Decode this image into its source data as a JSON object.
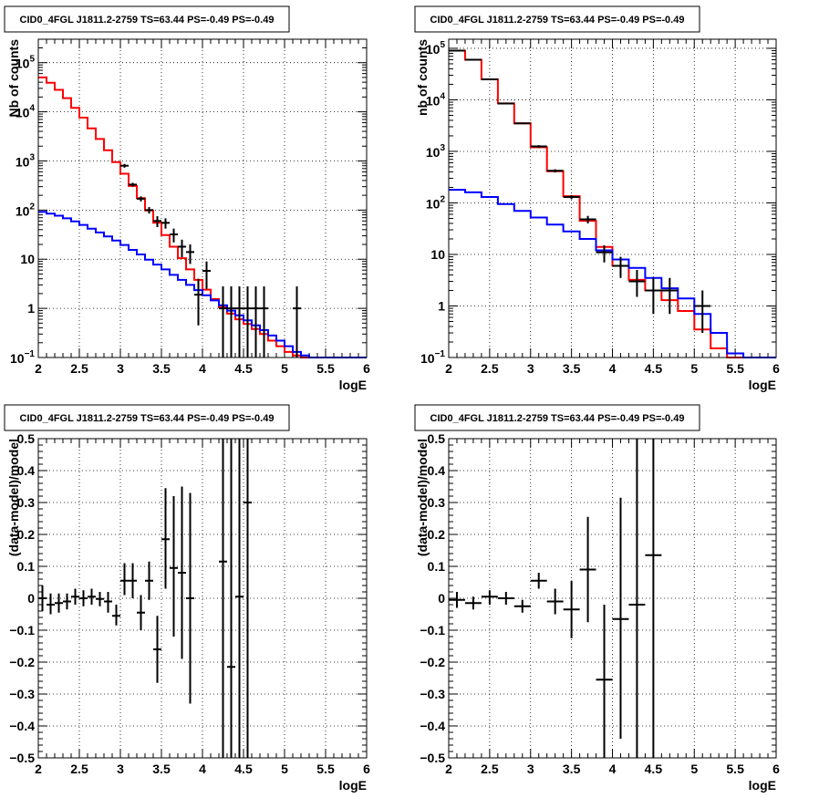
{
  "chart_data": [
    {
      "type": "line",
      "title": "CID0_4FGL J1811.2-2759 TS=63.44 PS=-0.49 PS=-0.49",
      "xlabel": "logE",
      "ylabel": "Nb of counts",
      "xlim": [
        2,
        6
      ],
      "ylim": [
        0.1,
        300000
      ],
      "ytype": "log",
      "grid": true,
      "xticks": [
        "2",
        "2.5",
        "3",
        "3.5",
        "4",
        "4.5",
        "5",
        "5.5",
        "6"
      ],
      "yticks": [
        {
          "v": 0.1,
          "base": "10",
          "exp": "−1"
        },
        {
          "v": 1,
          "text": "1"
        },
        {
          "v": 10,
          "text": "10"
        },
        {
          "v": 100,
          "base": "10",
          "exp": "2"
        },
        {
          "v": 1000,
          "base": "10",
          "exp": "3"
        },
        {
          "v": 10000,
          "base": "10",
          "exp": "4"
        },
        {
          "v": 100000,
          "base": "10",
          "exp": "5"
        }
      ],
      "series": [
        {
          "color": "#ff0000",
          "style": "step",
          "binwidth": 0.1,
          "x": [
            2.05,
            2.15,
            2.25,
            2.35,
            2.45,
            2.55,
            2.65,
            2.75,
            2.85,
            2.95,
            3.05,
            3.15,
            3.25,
            3.35,
            3.45,
            3.55,
            3.65,
            3.75,
            3.85,
            3.95,
            4.05,
            4.15,
            4.25,
            4.35,
            4.45,
            4.55,
            4.65,
            4.75,
            4.85,
            4.95,
            5.05,
            5.15,
            5.25,
            5.35,
            5.45,
            5.55,
            5.65,
            5.75,
            5.85,
            5.95
          ],
          "y": [
            50000,
            39000,
            28000,
            19000,
            12000,
            7600,
            4600,
            2800,
            1650,
            950,
            550,
            310,
            175,
            98,
            55,
            31,
            18,
            10.5,
            6.2,
            3.8,
            2.4,
            1.55,
            1.05,
            0.78,
            0.6,
            0.48,
            0.38,
            0.3,
            0.22,
            0.17,
            0.13,
            0.11,
            0.1,
            0.1,
            0.1,
            0.1,
            0.1,
            0.1,
            0.1,
            0.1
          ]
        },
        {
          "color": "#0000ff",
          "style": "step",
          "binwidth": 0.1,
          "x": [
            2.05,
            2.15,
            2.25,
            2.35,
            2.45,
            2.55,
            2.65,
            2.75,
            2.85,
            2.95,
            3.05,
            3.15,
            3.25,
            3.35,
            3.45,
            3.55,
            3.65,
            3.75,
            3.85,
            3.95,
            4.05,
            4.15,
            4.25,
            4.35,
            4.45,
            4.55,
            4.65,
            4.75,
            4.85,
            4.95,
            5.05,
            5.15,
            5.25,
            5.35,
            5.45,
            5.55,
            5.65,
            5.75,
            5.85,
            5.95
          ],
          "y": [
            92,
            85,
            77,
            68,
            59,
            50,
            42,
            35,
            29,
            24,
            19.5,
            15.5,
            12.5,
            9.8,
            7.8,
            6.2,
            4.8,
            3.8,
            3.0,
            2.35,
            1.85,
            1.45,
            1.15,
            0.9,
            0.72,
            0.57,
            0.45,
            0.36,
            0.28,
            0.22,
            0.17,
            0.13,
            0.11,
            0.1,
            0.1,
            0.1,
            0.1,
            0.1,
            0.1,
            0.1
          ]
        },
        {
          "color": "#000000",
          "style": "errorbar",
          "xerr": 0.05,
          "x": [
            3.05,
            3.15,
            3.25,
            3.35,
            3.45,
            3.55,
            3.65,
            3.75,
            3.85,
            3.95,
            4.05,
            4.25,
            4.35,
            4.45,
            4.55,
            4.65,
            4.75,
            5.15
          ],
          "y": [
            800,
            330,
            170,
            100,
            60,
            55,
            32,
            18,
            14,
            1.9,
            5.8,
            1,
            1,
            1,
            1,
            1,
            1,
            1
          ],
          "ylo": [
            730,
            300,
            150,
            85,
            45,
            42,
            22,
            11,
            8,
            0.45,
            2.5,
            0.1,
            0.1,
            0.1,
            0.1,
            0.1,
            0.1,
            0.1
          ],
          "yhi": [
            870,
            360,
            190,
            115,
            75,
            68,
            42,
            25,
            20,
            4,
            9,
            2.8,
            2.8,
            2.8,
            2.8,
            2.8,
            2.8,
            2.8
          ]
        }
      ]
    },
    {
      "type": "line",
      "title": "CID0_4FGL J1811.2-2759 TS=63.44 PS=-0.49 PS=-0.49",
      "xlabel": "logE",
      "ylabel": "nb of counts",
      "xlim": [
        2,
        6
      ],
      "ylim": [
        0.1,
        150000
      ],
      "ytype": "log",
      "grid": true,
      "xticks": [
        "2",
        "2.5",
        "3",
        "3.5",
        "4",
        "4.5",
        "5",
        "5.5",
        "6"
      ],
      "yticks": [
        {
          "v": 0.1,
          "base": "10",
          "exp": "−1"
        },
        {
          "v": 1,
          "text": "1"
        },
        {
          "v": 10,
          "text": "10"
        },
        {
          "v": 100,
          "base": "10",
          "exp": "2"
        },
        {
          "v": 1000,
          "base": "10",
          "exp": "3"
        },
        {
          "v": 10000,
          "base": "10",
          "exp": "4"
        },
        {
          "v": 100000,
          "base": "10",
          "exp": "5"
        }
      ],
      "series": [
        {
          "color": "#ff0000",
          "style": "step",
          "binwidth": 0.2,
          "x": [
            2.1,
            2.3,
            2.5,
            2.7,
            2.9,
            3.1,
            3.3,
            3.5,
            3.7,
            3.9,
            4.1,
            4.3,
            4.5,
            4.7,
            4.9,
            5.1,
            5.3,
            5.5,
            5.7,
            5.9
          ],
          "y": [
            90000,
            60000,
            25000,
            8500,
            3500,
            1200,
            410,
            135,
            45,
            14,
            6,
            3.2,
            2,
            1.3,
            0.8,
            0.35,
            0.15,
            0.1,
            0.1,
            0.1
          ]
        },
        {
          "color": "#0000ff",
          "style": "step",
          "binwidth": 0.2,
          "x": [
            2.1,
            2.3,
            2.5,
            2.7,
            2.9,
            3.1,
            3.3,
            3.5,
            3.7,
            3.9,
            4.1,
            4.3,
            4.5,
            4.7,
            4.9,
            5.1,
            5.3,
            5.5,
            5.7,
            5.9
          ],
          "y": [
            180,
            160,
            130,
            95,
            70,
            52,
            38,
            28,
            20,
            12,
            8,
            5.5,
            3.5,
            2.2,
            1.4,
            0.7,
            0.3,
            0.12,
            0.1,
            0.1
          ]
        },
        {
          "color": "#000000",
          "style": "errorbar",
          "xerr": 0.1,
          "x": [
            2.1,
            2.3,
            2.5,
            2.7,
            2.9,
            3.1,
            3.3,
            3.5,
            3.7,
            3.9,
            4.1,
            4.3,
            4.5,
            4.7,
            5.1
          ],
          "y": [
            90000,
            60000,
            25000,
            8500,
            3500,
            1250,
            420,
            130,
            48,
            11,
            6,
            3,
            2,
            2,
            1
          ],
          "ylo": [
            89000,
            59000,
            24500,
            8300,
            3400,
            1180,
            390,
            118,
            40,
            7,
            3.5,
            1.5,
            0.7,
            0.7,
            0.3
          ],
          "yhi": [
            91000,
            61000,
            25500,
            8700,
            3600,
            1320,
            450,
            142,
            56,
            15,
            9,
            5,
            3.5,
            3.5,
            2
          ]
        }
      ]
    },
    {
      "type": "scatter",
      "title": "CID0_4FGL J1811.2-2759 TS=63.44 PS=-0.49 PS=-0.49",
      "xlabel": "logE",
      "ylabel": "(data-model)/model",
      "xlim": [
        2,
        6
      ],
      "ylim": [
        -0.5,
        0.5
      ],
      "ytype": "linear",
      "grid": true,
      "xticks": [
        "2",
        "2.5",
        "3",
        "3.5",
        "4",
        "4.5",
        "5",
        "5.5",
        "6"
      ],
      "yticks": [
        {
          "v": -0.5,
          "text": "−0.5"
        },
        {
          "v": -0.4,
          "text": "−0.4"
        },
        {
          "v": -0.3,
          "text": "−0.3"
        },
        {
          "v": -0.2,
          "text": "−0.2"
        },
        {
          "v": -0.1,
          "text": "−0.1"
        },
        {
          "v": 0,
          "text": "0"
        },
        {
          "v": 0.1,
          "text": "0.1"
        },
        {
          "v": 0.2,
          "text": "0.2"
        },
        {
          "v": 0.3,
          "text": "0.3"
        },
        {
          "v": 0.4,
          "text": "0.4"
        },
        {
          "v": 0.5,
          "text": "0.5"
        }
      ],
      "series": [
        {
          "color": "#000000",
          "style": "errorbar",
          "xerr": 0.05,
          "x": [
            2.05,
            2.15,
            2.25,
            2.35,
            2.45,
            2.55,
            2.65,
            2.75,
            2.85,
            2.95,
            3.05,
            3.15,
            3.25,
            3.35,
            3.45,
            3.55,
            3.65,
            3.75,
            3.85,
            4.25,
            4.35,
            4.45,
            4.55
          ],
          "y": [
            0.0,
            -0.02,
            -0.015,
            -0.01,
            0.005,
            0.0,
            0.005,
            -0.002,
            -0.01,
            -0.055,
            0.055,
            0.055,
            -0.045,
            0.055,
            -0.16,
            0.185,
            0.095,
            0.08,
            0.0,
            0.115,
            -0.215,
            0.005,
            0.3
          ],
          "ylo": [
            -0.04,
            -0.05,
            -0.045,
            -0.035,
            -0.02,
            -0.025,
            -0.02,
            -0.025,
            -0.045,
            -0.085,
            0.01,
            0.0,
            -0.1,
            -0.005,
            -0.265,
            0.03,
            -0.12,
            -0.19,
            -0.33,
            -0.5,
            -0.5,
            -0.5,
            -0.5
          ],
          "yhi": [
            0.04,
            0.015,
            0.015,
            0.015,
            0.03,
            0.025,
            0.03,
            0.02,
            0.02,
            -0.02,
            0.11,
            0.11,
            0.01,
            0.115,
            -0.055,
            0.345,
            0.32,
            0.35,
            0.33,
            0.5,
            0.5,
            0.5,
            0.5
          ]
        }
      ]
    },
    {
      "type": "scatter",
      "title": "CID0_4FGL J1811.2-2759 TS=63.44 PS=-0.49 PS=-0.49",
      "xlabel": "logE",
      "ylabel": "(data-model)/model",
      "xlim": [
        2,
        6
      ],
      "ylim": [
        -0.5,
        0.5
      ],
      "ytype": "linear",
      "grid": true,
      "xticks": [
        "2",
        "2.5",
        "3",
        "3.5",
        "4",
        "4.5",
        "5",
        "5.5",
        "6"
      ],
      "yticks": [
        {
          "v": -0.5,
          "text": "−0.5"
        },
        {
          "v": -0.4,
          "text": "−0.4"
        },
        {
          "v": -0.3,
          "text": "−0.3"
        },
        {
          "v": -0.2,
          "text": "−0.2"
        },
        {
          "v": -0.1,
          "text": "−0.1"
        },
        {
          "v": 0,
          "text": "0"
        },
        {
          "v": 0.1,
          "text": "0.1"
        },
        {
          "v": 0.2,
          "text": "0.2"
        },
        {
          "v": 0.3,
          "text": "0.3"
        },
        {
          "v": 0.4,
          "text": "0.4"
        },
        {
          "v": 0.5,
          "text": "0.5"
        }
      ],
      "series": [
        {
          "color": "#000000",
          "style": "errorbar",
          "xerr": 0.1,
          "x": [
            2.1,
            2.3,
            2.5,
            2.7,
            2.9,
            3.1,
            3.3,
            3.5,
            3.7,
            3.9,
            4.1,
            4.3,
            4.5
          ],
          "y": [
            -0.005,
            -0.015,
            0.005,
            0.0,
            -0.025,
            0.055,
            -0.01,
            -0.035,
            0.09,
            -0.255,
            -0.065,
            -0.02,
            0.135
          ],
          "ylo": [
            -0.03,
            -0.035,
            -0.02,
            -0.02,
            -0.045,
            0.03,
            -0.05,
            -0.125,
            -0.075,
            -0.5,
            -0.44,
            -0.5,
            -0.5
          ],
          "yhi": [
            0.02,
            0.005,
            0.025,
            0.02,
            -0.005,
            0.08,
            0.03,
            0.055,
            0.255,
            -0.02,
            0.315,
            0.5,
            0.5
          ]
        }
      ]
    }
  ]
}
